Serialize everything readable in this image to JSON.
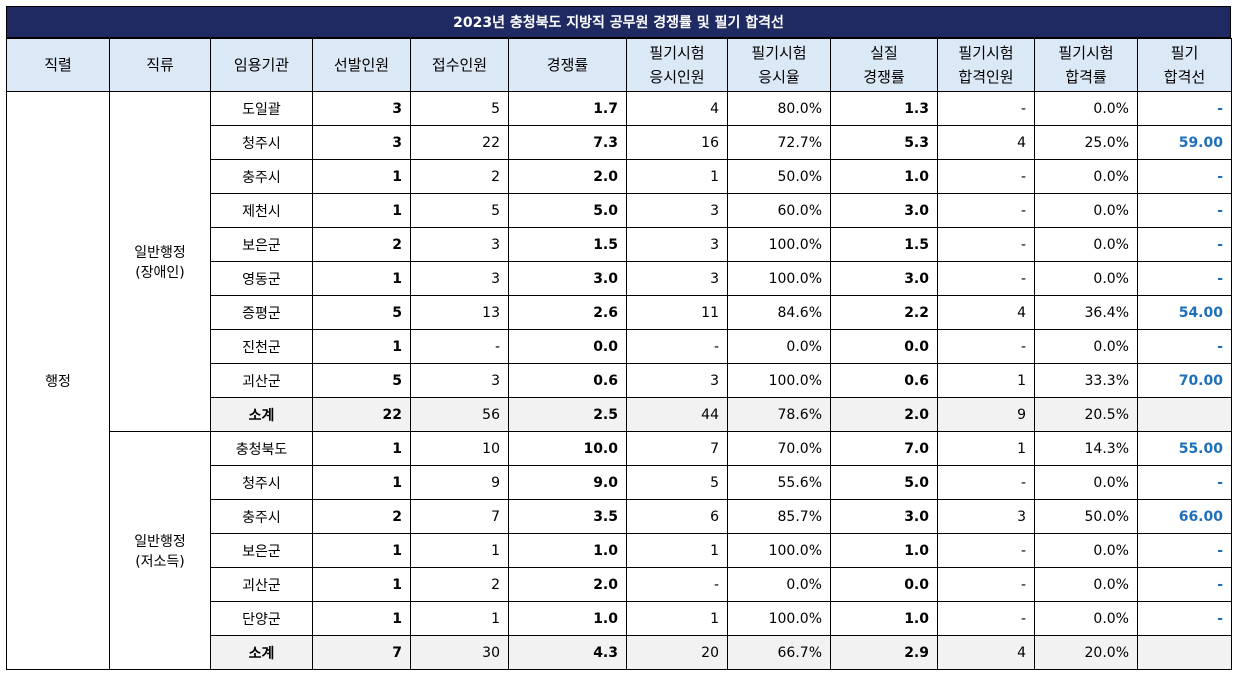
{
  "title": "2023년 충청북도 지방직 공무원 경쟁률 및 필기 합격선",
  "headers": [
    "직렬",
    "직류",
    "임용기관",
    "선발인원",
    "접수인원",
    "경쟁률",
    "필기시험\n응시인원",
    "필기시험\n응시율",
    "실질\n경쟁률",
    "필기시험\n합격인원",
    "필기시험\n합격률",
    "필기\n합격선"
  ],
  "series": "행정",
  "groups": [
    {
      "name": "일반행정\n(장애인)",
      "rows": [
        [
          "도일괄",
          "3",
          "5",
          "1.7",
          "4",
          "80.0%",
          "1.3",
          "-",
          "0.0%",
          "-"
        ],
        [
          "청주시",
          "3",
          "22",
          "7.3",
          "16",
          "72.7%",
          "5.3",
          "4",
          "25.0%",
          "59.00"
        ],
        [
          "충주시",
          "1",
          "2",
          "2.0",
          "1",
          "50.0%",
          "1.0",
          "-",
          "0.0%",
          "-"
        ],
        [
          "제천시",
          "1",
          "5",
          "5.0",
          "3",
          "60.0%",
          "3.0",
          "-",
          "0.0%",
          "-"
        ],
        [
          "보은군",
          "2",
          "3",
          "1.5",
          "3",
          "100.0%",
          "1.5",
          "-",
          "0.0%",
          "-"
        ],
        [
          "영동군",
          "1",
          "3",
          "3.0",
          "3",
          "100.0%",
          "3.0",
          "-",
          "0.0%",
          "-"
        ],
        [
          "증평군",
          "5",
          "13",
          "2.6",
          "11",
          "84.6%",
          "2.2",
          "4",
          "36.4%",
          "54.00"
        ],
        [
          "진천군",
          "1",
          "-",
          "0.0",
          "-",
          "0.0%",
          "0.0",
          "-",
          "0.0%",
          "-"
        ],
        [
          "괴산군",
          "5",
          "3",
          "0.6",
          "3",
          "100.0%",
          "0.6",
          "1",
          "33.3%",
          "70.00"
        ]
      ],
      "subtotal": [
        "소계",
        "22",
        "56",
        "2.5",
        "44",
        "78.6%",
        "2.0",
        "9",
        "20.5%",
        ""
      ]
    },
    {
      "name": "일반행정\n(저소득)",
      "rows": [
        [
          "충청북도",
          "1",
          "10",
          "10.0",
          "7",
          "70.0%",
          "7.0",
          "1",
          "14.3%",
          "55.00"
        ],
        [
          "청주시",
          "1",
          "9",
          "9.0",
          "5",
          "55.6%",
          "5.0",
          "-",
          "0.0%",
          "-"
        ],
        [
          "충주시",
          "2",
          "7",
          "3.5",
          "6",
          "85.7%",
          "3.0",
          "3",
          "50.0%",
          "66.00"
        ],
        [
          "보은군",
          "1",
          "1",
          "1.0",
          "1",
          "100.0%",
          "1.0",
          "-",
          "0.0%",
          "-"
        ],
        [
          "괴산군",
          "1",
          "2",
          "2.0",
          "-",
          "0.0%",
          "0.0",
          "-",
          "0.0%",
          "-"
        ],
        [
          "단양군",
          "1",
          "1",
          "1.0",
          "1",
          "100.0%",
          "1.0",
          "-",
          "0.0%",
          "-"
        ]
      ],
      "subtotal": [
        "소계",
        "7",
        "30",
        "4.3",
        "20",
        "66.7%",
        "2.9",
        "4",
        "20.0%",
        ""
      ]
    }
  ],
  "colors": {
    "title_bg": "#1f2a63",
    "header_bg": "#dbe8f5",
    "pass_text": "#1f6fba",
    "subtotal_bg": "#f2f2f2"
  }
}
